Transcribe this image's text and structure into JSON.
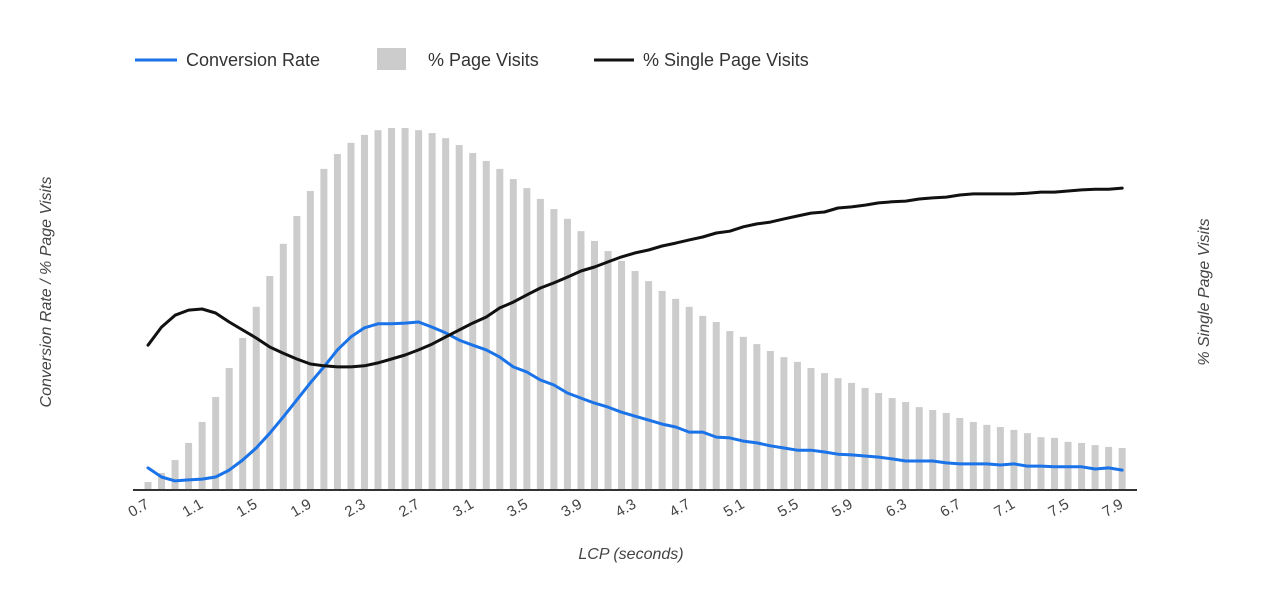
{
  "chart_data": {
    "type": "bar+line",
    "xlabel": "LCP (seconds)",
    "ylabel_left": "Conversion Rate / % Page Visits",
    "ylabel_right": "% Single Page Visits",
    "ylim_left": [
      0,
      100
    ],
    "ylim_right": [
      0,
      100
    ],
    "grid": false,
    "legend_placement": "top-left",
    "tick_labels": [
      "0.7",
      "1.1",
      "1.5",
      "1.9",
      "2.3",
      "2.7",
      "3.1",
      "3.5",
      "3.9",
      "4.3",
      "4.7",
      "5.1",
      "5.5",
      "5.9",
      "6.3",
      "6.7",
      "7.1",
      "7.5",
      "7.9"
    ],
    "x": [
      0.7,
      0.8,
      0.9,
      1.0,
      1.1,
      1.2,
      1.3,
      1.4,
      1.5,
      1.6,
      1.7,
      1.8,
      1.9,
      2.0,
      2.1,
      2.2,
      2.3,
      2.4,
      2.5,
      2.6,
      2.7,
      2.8,
      2.9,
      3.0,
      3.1,
      3.2,
      3.3,
      3.4,
      3.5,
      3.6,
      3.7,
      3.8,
      3.9,
      4.0,
      4.1,
      4.2,
      4.3,
      4.4,
      4.5,
      4.6,
      4.7,
      4.8,
      4.9,
      5.0,
      5.1,
      5.2,
      5.3,
      5.4,
      5.5,
      5.6,
      5.7,
      5.8,
      5.9,
      6.0,
      6.1,
      6.2,
      6.3,
      6.4,
      6.5,
      6.6,
      6.7,
      6.8,
      6.9,
      7.0,
      7.1,
      7.2,
      7.3,
      7.4,
      7.5,
      7.6,
      7.7,
      7.8,
      7.9
    ],
    "series": [
      {
        "name": "Conversion Rate",
        "type": "line",
        "axis": "left",
        "color": "#1a73e8",
        "values": [
          6.1,
          3.6,
          2.5,
          2.8,
          3.0,
          3.6,
          5.5,
          8.3,
          11.6,
          15.7,
          20.2,
          24.9,
          29.6,
          34.0,
          38.7,
          42.3,
          44.8,
          45.9,
          45.9,
          46.1,
          46.4,
          45.0,
          43.4,
          41.4,
          40.0,
          38.7,
          36.7,
          34.0,
          32.6,
          30.4,
          29.0,
          26.8,
          25.4,
          24.0,
          22.9,
          21.5,
          20.4,
          19.3,
          18.2,
          17.4,
          16.0,
          16.0,
          14.6,
          14.4,
          13.5,
          13.0,
          12.2,
          11.6,
          11.0,
          11.0,
          10.5,
          9.9,
          9.7,
          9.4,
          9.1,
          8.6,
          8.0,
          8.0,
          8.0,
          7.5,
          7.2,
          7.2,
          7.2,
          6.9,
          7.2,
          6.6,
          6.6,
          6.4,
          6.4,
          6.4,
          5.8,
          6.1,
          5.5
        ]
      },
      {
        "name": "% Page Visits",
        "type": "bar",
        "axis": "left",
        "color": "#cccccc",
        "values": [
          2.2,
          4.7,
          8.3,
          13.0,
          18.8,
          25.7,
          33.7,
          42.0,
          50.6,
          59.1,
          68.0,
          75.7,
          82.6,
          88.7,
          92.8,
          95.9,
          98.1,
          99.4,
          100,
          100,
          99.4,
          98.6,
          97.2,
          95.3,
          93.1,
          90.9,
          88.7,
          85.9,
          83.4,
          80.4,
          77.6,
          74.9,
          71.5,
          68.8,
          66.0,
          63.3,
          60.5,
          57.7,
          55.0,
          52.8,
          50.6,
          48.1,
          46.4,
          43.9,
          42.3,
          40.3,
          38.4,
          36.7,
          35.4,
          33.7,
          32.3,
          30.9,
          29.6,
          28.2,
          26.8,
          25.4,
          24.3,
          22.9,
          22.1,
          21.3,
          19.9,
          18.8,
          18.0,
          17.4,
          16.6,
          15.7,
          14.6,
          14.4,
          13.3,
          13.0,
          12.4,
          11.9,
          11.6
        ]
      },
      {
        "name": "% Single Page Visits",
        "type": "line",
        "axis": "right",
        "color": "#111111",
        "values": [
          40.0,
          45.0,
          48.3,
          49.7,
          50.0,
          48.9,
          46.4,
          44.2,
          42.0,
          39.5,
          37.8,
          36.2,
          34.8,
          34.3,
          34.0,
          34.0,
          34.3,
          35.1,
          36.2,
          37.3,
          38.7,
          40.3,
          42.3,
          44.2,
          46.1,
          47.8,
          50.3,
          51.9,
          53.9,
          55.8,
          57.2,
          58.8,
          60.5,
          61.6,
          63.0,
          64.4,
          65.5,
          66.3,
          67.4,
          68.2,
          69.1,
          69.9,
          71.0,
          71.5,
          72.7,
          73.5,
          74.0,
          74.9,
          75.7,
          76.5,
          76.8,
          77.9,
          78.2,
          78.7,
          79.3,
          79.6,
          79.8,
          80.4,
          80.7,
          80.9,
          81.5,
          81.8,
          81.8,
          81.8,
          81.8,
          82.0,
          82.3,
          82.3,
          82.6,
          82.9,
          83.1,
          83.1,
          83.4
        ]
      }
    ]
  }
}
